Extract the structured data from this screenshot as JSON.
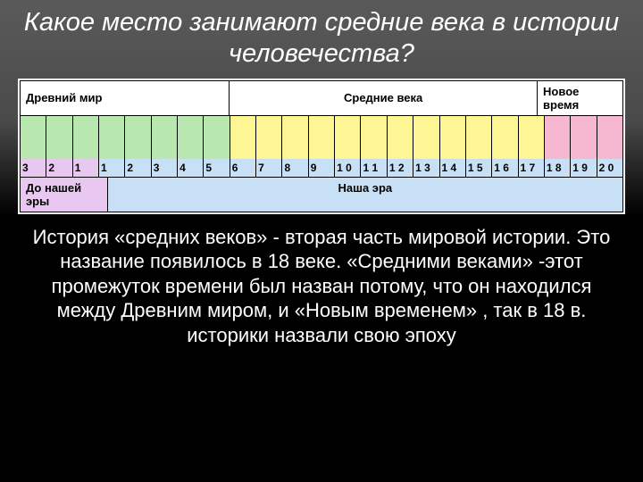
{
  "title": "Какое место занимают средние века в истории человечества?",
  "eras": {
    "ancient": {
      "label": "Древний мир",
      "span": 8,
      "bg": "#ffffff",
      "color_cells": "#b8e8b0"
    },
    "middle": {
      "label": "Средние века",
      "span": 12,
      "bg": "#ffffff",
      "color_cells": "#fef595"
    },
    "new": {
      "label": "Новое время",
      "span": 3,
      "bg": "#ffffff",
      "color_cells": "#f5b8d0"
    }
  },
  "numbers": [
    "3",
    "2",
    "1",
    "1",
    "2",
    "3",
    "4",
    "5",
    "6",
    "7",
    "8",
    "9",
    "1 0",
    "1 1",
    "1 2",
    "1 3",
    "1 4",
    "1 5",
    "1 6",
    "1 7",
    "1 8",
    "1 9",
    "2 0"
  ],
  "num_bgs": [
    "#e8c8f0",
    "#e8c8f0",
    "#e8c8f0",
    "#c8e0f5",
    "#c8e0f5",
    "#c8e0f5",
    "#c8e0f5",
    "#c8e0f5",
    "#c8e0f5",
    "#c8e0f5",
    "#c8e0f5",
    "#c8e0f5",
    "#c8e0f5",
    "#c8e0f5",
    "#c8e0f5",
    "#c8e0f5",
    "#c8e0f5",
    "#c8e0f5",
    "#c8e0f5",
    "#c8e0f5",
    "#c8e0f5",
    "#c8e0f5",
    "#c8e0f5"
  ],
  "epochs": {
    "bc": {
      "label": "До нашей эры",
      "bg": "#e8c8f0",
      "span": 3
    },
    "ad": {
      "label": "Наша эра",
      "bg": "#c8e0f5",
      "span": 20
    }
  },
  "body": "История «средних веков» - вторая часть мировой истории. Это название появилось в 18 веке. «Средними веками» -этот промежуток времени был назван потому, что он находился между Древним миром, и «Новым временем» , так в 18 в. историки назвали свою эпоху",
  "colors": {
    "title": "#ffffff",
    "body": "#ffffff",
    "border": "#000000"
  }
}
